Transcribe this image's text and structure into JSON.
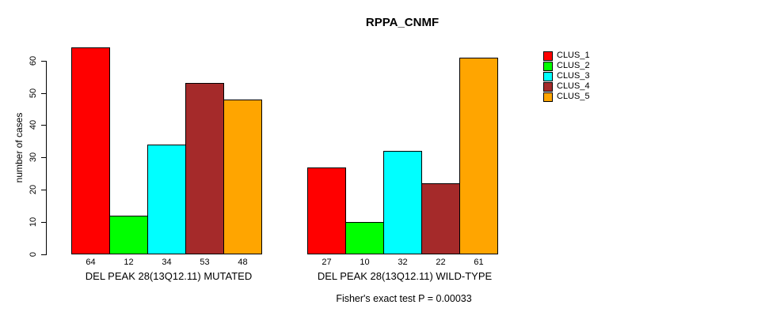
{
  "chart_data": {
    "type": "bar",
    "title": "RPPA_CNMF",
    "ylabel": "number of cases",
    "xlabel": "",
    "footer": "Fisher's exact test P = 0.00033",
    "ylim": [
      0,
      60
    ],
    "yticks": [
      0,
      10,
      20,
      30,
      40,
      50,
      60
    ],
    "grid": false,
    "legend_position": "right",
    "bar_labels_shown": true,
    "categories": [
      "DEL PEAK 28(13Q12.11) MUTATED",
      "DEL PEAK 28(13Q12.11) WILD-TYPE"
    ],
    "series": [
      {
        "name": "CLUS_1",
        "color": "#FF0000",
        "values": [
          64,
          27
        ]
      },
      {
        "name": "CLUS_2",
        "color": "#00FF00",
        "values": [
          12,
          10
        ]
      },
      {
        "name": "CLUS_3",
        "color": "#00FFFF",
        "values": [
          34,
          32
        ]
      },
      {
        "name": "CLUS_4",
        "color": "#A52A2A",
        "values": [
          53,
          22
        ]
      },
      {
        "name": "CLUS_5",
        "color": "#FFA500",
        "values": [
          48,
          61
        ]
      }
    ]
  }
}
